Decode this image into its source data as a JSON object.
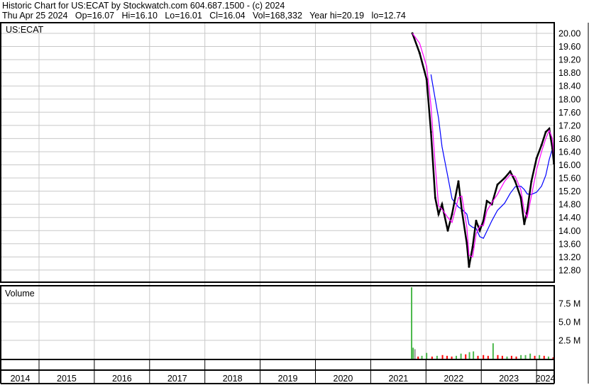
{
  "header": {
    "title": "Historic Chart for US:ECAT by Stockwatch.com 604.687.1500 - (c) 2024",
    "quote": "Thu Apr 25 2024   Op=16.07   Hi=16.10   Lo=16.01   Cl=16.04   Vol=168,332   Year hi=20.19   lo=12.74"
  },
  "chart_data": {
    "type": "line",
    "symbol_label": "US:ECAT",
    "volume_label": "Volume",
    "x_tick_labels": [
      "2014",
      "2015",
      "2016",
      "2017",
      "2018",
      "2019",
      "2020",
      "2021",
      "2022",
      "2023",
      "2024"
    ],
    "y_tick_labels": [
      "20.00",
      "19.60",
      "19.20",
      "18.80",
      "18.40",
      "18.00",
      "17.60",
      "17.20",
      "16.80",
      "16.40",
      "16.00",
      "15.60",
      "15.20",
      "14.80",
      "14.40",
      "14.00",
      "13.60",
      "13.20",
      "12.80"
    ],
    "ylim": [
      12.8,
      20.0
    ],
    "volume_tick_labels": [
      "7.5 M",
      "5.0 M",
      "2.5 M"
    ],
    "grid": true,
    "colors": {
      "price": "#000000",
      "short_ma": "#ff00ff",
      "long_ma": "#0000ff",
      "volume_up": "#4cb84c",
      "volume_down": "#ff0000",
      "grid": "#c8c8c8"
    },
    "price": [
      [
        "2021-10-03",
        20.0
      ],
      [
        "2021-11-20",
        19.4
      ],
      [
        "2022-01-05",
        18.6
      ],
      [
        "2022-02-03",
        17.0
      ],
      [
        "2022-03-03",
        15.0
      ],
      [
        "2022-03-25",
        14.5
      ],
      [
        "2022-04-17",
        14.8
      ],
      [
        "2022-05-25",
        14.0
      ],
      [
        "2022-06-22",
        14.5
      ],
      [
        "2022-08-03",
        15.5
      ],
      [
        "2022-08-26",
        14.6
      ],
      [
        "2022-09-28",
        13.6
      ],
      [
        "2022-10-12",
        12.9
      ],
      [
        "2022-11-05",
        13.5
      ],
      [
        "2022-11-28",
        14.3
      ],
      [
        "2022-12-22",
        14.0
      ],
      [
        "2023-01-15",
        14.3
      ],
      [
        "2023-02-07",
        14.9
      ],
      [
        "2023-03-12",
        14.8
      ],
      [
        "2023-04-18",
        15.4
      ],
      [
        "2023-06-04",
        15.6
      ],
      [
        "2023-07-11",
        15.8
      ],
      [
        "2023-08-13",
        15.5
      ],
      [
        "2023-09-19",
        15.0
      ],
      [
        "2023-10-12",
        14.2
      ],
      [
        "2023-10-31",
        14.6
      ],
      [
        "2023-11-28",
        15.5
      ],
      [
        "2024-01-01",
        16.2
      ],
      [
        "2024-02-03",
        16.6
      ],
      [
        "2024-03-02",
        17.0
      ],
      [
        "2024-03-25",
        17.1
      ],
      [
        "2024-04-15",
        16.5
      ],
      [
        "2024-04-25",
        16.04
      ]
    ],
    "volume": [
      [
        "2021-09-28",
        9700000,
        "up"
      ],
      [
        "2021-10-08",
        1500000,
        "up"
      ],
      [
        "2021-10-20",
        1300000,
        "flat"
      ],
      [
        "2021-11-10",
        300000,
        "down"
      ],
      [
        "2021-12-05",
        400000,
        "up"
      ],
      [
        "2022-01-05",
        800000,
        "up"
      ],
      [
        "2022-02-10",
        300000,
        "down"
      ],
      [
        "2022-03-15",
        400000,
        "up"
      ],
      [
        "2022-04-20",
        500000,
        "down"
      ],
      [
        "2022-05-20",
        400000,
        "down"
      ],
      [
        "2022-06-20",
        300000,
        "down"
      ],
      [
        "2022-07-20",
        400000,
        "up"
      ],
      [
        "2022-08-20",
        700000,
        "up"
      ],
      [
        "2022-09-20",
        600000,
        "down"
      ],
      [
        "2022-10-15",
        900000,
        "up"
      ],
      [
        "2022-11-10",
        1000000,
        "up"
      ],
      [
        "2022-12-10",
        400000,
        "down"
      ],
      [
        "2023-01-15",
        500000,
        "down"
      ],
      [
        "2023-02-15",
        400000,
        "down"
      ],
      [
        "2023-03-20",
        2100000,
        "up"
      ],
      [
        "2023-04-20",
        500000,
        "down"
      ],
      [
        "2023-05-20",
        400000,
        "down"
      ],
      [
        "2023-06-20",
        300000,
        "up"
      ],
      [
        "2023-07-20",
        400000,
        "down"
      ],
      [
        "2023-08-20",
        300000,
        "down"
      ],
      [
        "2023-09-20",
        500000,
        "up"
      ],
      [
        "2023-10-20",
        500000,
        "up"
      ],
      [
        "2023-11-20",
        700000,
        "up"
      ],
      [
        "2023-12-20",
        400000,
        "down"
      ],
      [
        "2024-01-20",
        500000,
        "up"
      ],
      [
        "2024-02-20",
        400000,
        "down"
      ],
      [
        "2024-03-20",
        300000,
        "up"
      ],
      [
        "2024-04-20",
        200000,
        "down"
      ]
    ]
  }
}
